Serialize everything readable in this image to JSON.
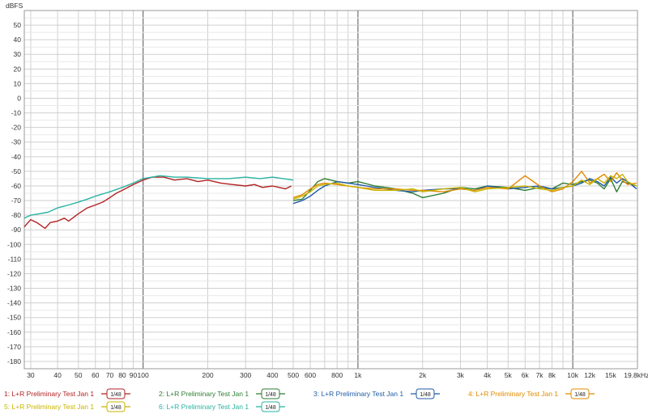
{
  "chart_data": {
    "type": "line",
    "title": "",
    "ylabel": "dBFS",
    "xlabel": "",
    "xscale": "log",
    "xlim": [
      28,
      20000
    ],
    "ylim": [
      -185,
      60
    ],
    "grid": true,
    "legend_position": "bottom",
    "y_ticks": [
      50,
      40,
      30,
      20,
      10,
      0,
      -10,
      -20,
      -30,
      -40,
      -50,
      -60,
      -70,
      -80,
      -90,
      -100,
      -110,
      -120,
      -130,
      -140,
      -150,
      -160,
      -170,
      -180
    ],
    "x_ticks": [
      {
        "value": 30,
        "label": "30"
      },
      {
        "value": 40,
        "label": "40"
      },
      {
        "value": 50,
        "label": "50"
      },
      {
        "value": 60,
        "label": "60"
      },
      {
        "value": 70,
        "label": "70"
      },
      {
        "value": 80,
        "label": "80"
      },
      {
        "value": 90,
        "label": "90"
      },
      {
        "value": 100,
        "label": "100"
      },
      {
        "value": 200,
        "label": "200"
      },
      {
        "value": 300,
        "label": "300"
      },
      {
        "value": 400,
        "label": "400"
      },
      {
        "value": 500,
        "label": "500"
      },
      {
        "value": 600,
        "label": "600"
      },
      {
        "value": 800,
        "label": "800"
      },
      {
        "value": 1000,
        "label": "1k"
      },
      {
        "value": 2000,
        "label": "2k"
      },
      {
        "value": 3000,
        "label": "3k"
      },
      {
        "value": 4000,
        "label": "4k"
      },
      {
        "value": 5000,
        "label": "5k"
      },
      {
        "value": 6000,
        "label": "6k"
      },
      {
        "value": 7000,
        "label": "7k"
      },
      {
        "value": 8000,
        "label": "8k"
      },
      {
        "value": 10000,
        "label": "10k"
      },
      {
        "value": 12000,
        "label": "12k"
      },
      {
        "value": 15000,
        "label": "15k"
      },
      {
        "value": 19800,
        "label": "19.8kHz"
      }
    ],
    "series": [
      {
        "name": "1: L+R Preliminary Test Jan 1",
        "color": "#b22222",
        "badge": "1/48",
        "x": [
          28,
          30,
          32,
          35,
          37,
          40,
          43,
          45,
          50,
          55,
          60,
          65,
          70,
          75,
          80,
          90,
          100,
          110,
          125,
          140,
          160,
          180,
          200,
          230,
          260,
          300,
          330,
          360,
          400,
          430,
          460,
          490
        ],
        "y": [
          -88,
          -83,
          -85,
          -89,
          -85,
          -84,
          -82,
          -84,
          -79,
          -75,
          -73,
          -71,
          -68,
          -65,
          -63,
          -59,
          -56,
          -54,
          -54,
          -56,
          -55,
          -57,
          -56,
          -58,
          -59,
          -60,
          -59,
          -61,
          -60,
          -61,
          -62,
          -60
        ]
      },
      {
        "name": "2: L+R Preliminary Test Jan 1",
        "color": "#2e7d32",
        "badge": "1/48",
        "x": [
          500,
          550,
          600,
          650,
          700,
          800,
          900,
          1000,
          1200,
          1500,
          1800,
          2000,
          2500,
          3000,
          3500,
          4000,
          5000,
          6000,
          7000,
          8000,
          9000,
          10000,
          11000,
          12000,
          13000,
          14000,
          15000,
          16000,
          17000,
          18000,
          19800
        ],
        "y": [
          -70,
          -69,
          -63,
          -57,
          -55,
          -57,
          -58,
          -57,
          -60,
          -62,
          -65,
          -68,
          -65,
          -61,
          -62,
          -60,
          -61,
          -63,
          -61,
          -62,
          -58,
          -59,
          -57,
          -56,
          -58,
          -62,
          -55,
          -64,
          -57,
          -58,
          -60
        ]
      },
      {
        "name": "3: L+R Preliminary Test Jan 1",
        "color": "#1f5aa6",
        "badge": "1/48",
        "x": [
          500,
          550,
          600,
          650,
          700,
          800,
          900,
          1000,
          1200,
          1500,
          1800,
          2000,
          2500,
          3000,
          3500,
          4000,
          5000,
          6000,
          7000,
          8000,
          9000,
          10000,
          11000,
          12000,
          13000,
          14000,
          15000,
          16000,
          17000,
          18000,
          19800
        ],
        "y": [
          -72,
          -70,
          -67,
          -63,
          -60,
          -57,
          -58,
          -59,
          -61,
          -63,
          -64,
          -63,
          -62,
          -62,
          -63,
          -60,
          -62,
          -61,
          -60,
          -62,
          -61,
          -60,
          -58,
          -55,
          -57,
          -60,
          -54,
          -58,
          -55,
          -57,
          -62
        ]
      },
      {
        "name": "4: L+R Preliminary Test Jan 1",
        "color": "#e08a00",
        "badge": "1/48",
        "x": [
          500,
          550,
          600,
          650,
          700,
          800,
          900,
          1000,
          1200,
          1500,
          1800,
          2000,
          2500,
          3000,
          3500,
          4000,
          5000,
          6000,
          7000,
          8000,
          9000,
          10000,
          11000,
          12000,
          13000,
          14000,
          15000,
          16000,
          17000,
          18000,
          19800
        ],
        "y": [
          -68,
          -66,
          -62,
          -59,
          -58,
          -59,
          -60,
          -61,
          -62,
          -62,
          -63,
          -63,
          -64,
          -62,
          -63,
          -61,
          -62,
          -53,
          -60,
          -64,
          -62,
          -57,
          -50,
          -58,
          -55,
          -52,
          -57,
          -51,
          -56,
          -59,
          -58
        ]
      },
      {
        "name": "5: L+R Preliminary Test Jan 1",
        "color": "#c8b400",
        "badge": "1/48",
        "x": [
          500,
          550,
          600,
          650,
          700,
          800,
          900,
          1000,
          1200,
          1500,
          1800,
          2000,
          2500,
          3000,
          3500,
          4000,
          5000,
          6000,
          7000,
          8000,
          9000,
          10000,
          11000,
          12000,
          13000,
          14000,
          15000,
          16000,
          17000,
          18000,
          19800
        ],
        "y": [
          -69,
          -67,
          -64,
          -60,
          -59,
          -58,
          -60,
          -61,
          -63,
          -63,
          -62,
          -64,
          -62,
          -61,
          -64,
          -62,
          -61,
          -60,
          -62,
          -63,
          -61,
          -60,
          -56,
          -59,
          -55,
          -58,
          -53,
          -55,
          -52,
          -57,
          -60
        ]
      },
      {
        "name": "6: L+R Preliminary Test Jan 1",
        "color": "#27b3a1",
        "badge": "1/48",
        "x": [
          28,
          30,
          33,
          36,
          40,
          45,
          50,
          55,
          60,
          70,
          80,
          90,
          100,
          120,
          140,
          160,
          200,
          250,
          300,
          350,
          400,
          450,
          500
        ],
        "y": [
          -82,
          -80,
          -79,
          -78,
          -75,
          -73,
          -71,
          -69,
          -67,
          -64,
          -61,
          -58,
          -55,
          -53,
          -54,
          -54,
          -55,
          -55,
          -54,
          -55,
          -54,
          -55,
          -56
        ]
      }
    ]
  }
}
